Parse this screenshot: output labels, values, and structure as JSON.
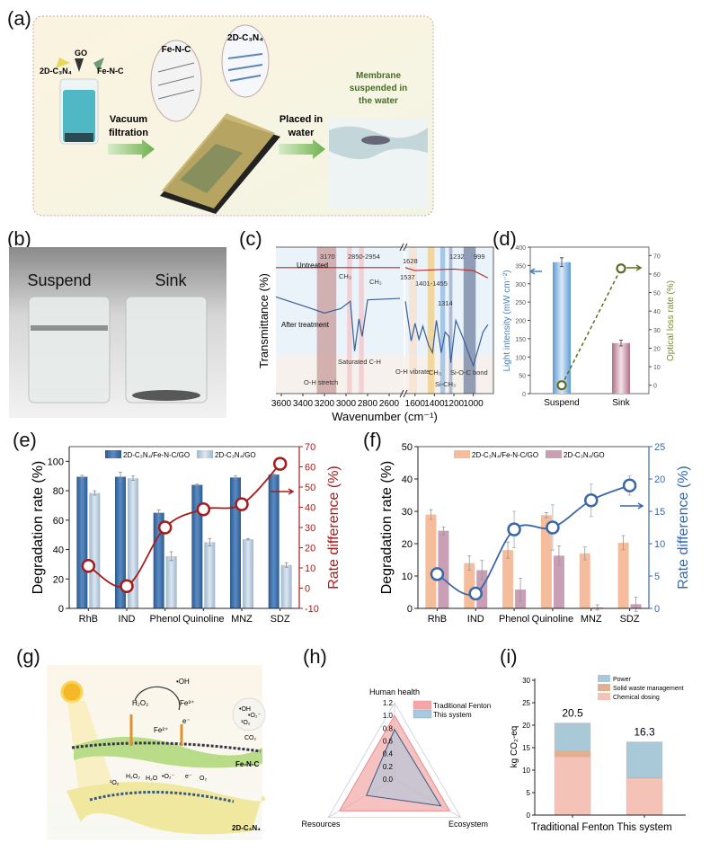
{
  "panel_labels": {
    "a": "(a)",
    "b": "(b)",
    "c": "(c)",
    "d": "(d)",
    "e": "(e)",
    "f": "(f)",
    "g": "(g)",
    "h": "(h)",
    "i": "(i)"
  },
  "panel_a": {
    "c3n4": "2D-C₃N₄",
    "go": "GO",
    "fenc": "Fe-N-C",
    "zoom_fenc": "Fe-N-C",
    "zoom_c3n4": "2D-C₃N₄",
    "vacuum_1": "Vacuum",
    "vacuum_2": "filtration",
    "placed_1": "Placed in",
    "placed_2": "water",
    "membrane_1": "Membrane",
    "membrane_2": "suspended in",
    "membrane_3": "the water",
    "colors": {
      "arrow": "#8cc36a",
      "membrane_text": "#4a6a2a",
      "beaker_liquid": "#4fb8c4"
    }
  },
  "panel_b": {
    "suspend": "Suspend",
    "sink": "Sink"
  },
  "panel_g": {
    "oh": "•OH",
    "h2o2": "H₂O₂",
    "fe3": "Fe³⁺",
    "fe2": "Fe²⁺",
    "e": "e⁻",
    "bubble_oh": "•OH",
    "bubble_o2": "•O₂⁻",
    "bubble_1o2": "¹O₂",
    "co2": "CO₂",
    "fenc": "Fe-N-C",
    "c3n4": "2D-C₃N₄",
    "low_1o2": "¹O₂",
    "low_h2o2": "H₂O₂",
    "low_h2o": "H₂O",
    "low_o2r": "•O₂⁻",
    "low_e": "e⁻",
    "low_o2": "O₂"
  },
  "chart_data": [
    {
      "panel": "c",
      "type": "line",
      "xlabel": "Wavenumber (cm⁻¹)",
      "ylabel": "Transmittance (%)",
      "x_axis_broken": true,
      "x_ticks_left": [
        3600,
        3400,
        3200,
        3000,
        2800,
        2600
      ],
      "x_ticks_right": [
        1600,
        1400,
        1200,
        1000
      ],
      "series": [
        {
          "name": "Untreated",
          "color": "#b03030",
          "points": [
            [
              3650,
              86
            ],
            [
              2500,
              86
            ],
            [
              1700,
              86
            ],
            [
              1600,
              84
            ],
            [
              1200,
              85
            ],
            [
              1000,
              84
            ],
            [
              850,
              79
            ]
          ]
        },
        {
          "name": "After treatment",
          "color": "#3a5f9a",
          "points": [
            [
              3650,
              66
            ],
            [
              3400,
              60
            ],
            [
              3200,
              55
            ],
            [
              3050,
              58
            ],
            [
              2960,
              63
            ],
            [
              2920,
              29
            ],
            [
              2880,
              51
            ],
            [
              2850,
              39
            ],
            [
              2800,
              64
            ],
            [
              2500,
              65
            ],
            [
              1700,
              63
            ],
            [
              1640,
              36
            ],
            [
              1600,
              48
            ],
            [
              1560,
              37
            ],
            [
              1520,
              46
            ],
            [
              1460,
              33
            ],
            [
              1420,
              28
            ],
            [
              1380,
              50
            ],
            [
              1330,
              28
            ],
            [
              1290,
              42
            ],
            [
              1250,
              39
            ],
            [
              1232,
              21
            ],
            [
              1180,
              50
            ],
            [
              1100,
              37
            ],
            [
              1000,
              19
            ],
            [
              900,
              42
            ],
            [
              850,
              47
            ]
          ]
        }
      ],
      "bands": [
        {
          "range": [
            3270,
            3090
          ],
          "color": "#c79a98"
        },
        {
          "range": [
            2990,
            2945
          ],
          "color": "#f2c4c8"
        },
        {
          "range": [
            2880,
            2835
          ],
          "color": "#f2c4c8"
        },
        {
          "range": [
            1660,
            1580
          ],
          "color": "#f8e0cc"
        },
        {
          "range": [
            1470,
            1400
          ],
          "color": "#f2cc80"
        },
        {
          "range": [
            1340,
            1290
          ],
          "color": "#90b8e0"
        },
        {
          "range": [
            1250,
            1215
          ],
          "color": "#98a8c4"
        },
        {
          "range": [
            1100,
            975
          ],
          "color": "#7080a0"
        }
      ],
      "annotations": {
        "p3170": "3170",
        "p2850": "2850-2954",
        "p1628": "1628",
        "p1232": "1232",
        "p999": "999",
        "ch3_a": "CH₃",
        "ch2": "CH₂",
        "p1537": "1537",
        "p1401": "1401-1455",
        "p1314": "1314",
        "oh_stretch": "O-H stretch",
        "sat_ch": "Saturated C-H",
        "oh_vibrate": "O-H vibrate",
        "ch3_b": "CH₃",
        "sich3": "Si-CH₃",
        "sioc": "Si-O-C bond"
      }
    },
    {
      "panel": "d",
      "type": "bar+line",
      "categories": [
        "Suspend",
        "Sink"
      ],
      "ylabel_left": "Light intensity (mW cm⁻²)",
      "ylabel_right": "Optical loss rate (%)",
      "ylim_left": [
        0,
        400
      ],
      "y_ticks_left": [
        0,
        50,
        100,
        150,
        200,
        250,
        300,
        350,
        400
      ],
      "ylim_right": [
        -5,
        75
      ],
      "y_ticks_right": [
        0,
        10,
        20,
        30,
        40,
        50,
        60,
        70
      ],
      "light_intensity": [
        359,
        138
      ],
      "light_error": [
        12,
        8
      ],
      "optical_loss": [
        0,
        63
      ],
      "colors": {
        "suspend": "#7fb2de",
        "sink": "#c48c9e",
        "loss": "#5a7020",
        "left_axis": "#4a80b8",
        "right_axis": "#7a8a30"
      }
    },
    {
      "panel": "e",
      "type": "bar+line",
      "categories": [
        "RhB",
        "IND",
        "Phenol",
        "Quinoline",
        "MNZ",
        "SDZ"
      ],
      "ylabel_left": "Degradation rate (%)",
      "ylabel_right": "Rate difference (%)",
      "ylim_left": [
        0,
        110
      ],
      "y_ticks_left": [
        0,
        20,
        40,
        60,
        80,
        100
      ],
      "ylim_right": [
        -10,
        70
      ],
      "y_ticks_right": [
        -10,
        0,
        10,
        20,
        30,
        40,
        50,
        60,
        70
      ],
      "series": [
        {
          "name": "2D-C₃N₄/Fe-N-C/GO",
          "values": [
            89.5,
            89.5,
            65,
            84,
            89,
            91
          ],
          "errors": [
            1,
            3,
            2,
            0.5,
            1,
            0.5
          ],
          "color": "#3e6fa6"
        },
        {
          "name": "2D-C₃N₄/GO",
          "values": [
            78.5,
            88.5,
            35.5,
            45,
            47,
            29.5
          ],
          "errors": [
            1.5,
            1.5,
            3,
            2.5,
            0.5,
            1.5
          ],
          "color": "#b9ccde"
        }
      ],
      "rate_difference": [
        11,
        1,
        30,
        39,
        41.5,
        61.5
      ],
      "line_color": "#a51c1c"
    },
    {
      "panel": "f",
      "type": "bar+line",
      "categories": [
        "RhB",
        "IND",
        "Phenol",
        "Quinoline",
        "MNZ",
        "SDZ"
      ],
      "ylabel_left": "Degradation rate (%)",
      "ylabel_right": "Rate difference (%)",
      "ylim_left": [
        0,
        50
      ],
      "y_ticks_left": [
        0,
        10,
        20,
        30,
        40,
        50
      ],
      "ylim_right": [
        0,
        25
      ],
      "y_ticks_right": [
        0,
        5,
        10,
        15,
        20,
        25
      ],
      "series": [
        {
          "name": "2D-C₃N₄/Fe-N-C/GO",
          "values": [
            29,
            14,
            18,
            28.8,
            17,
            20.3
          ],
          "errors": [
            1.5,
            2.2,
            2.5,
            0.8,
            2,
            2.2
          ],
          "color": "#f5bd9c"
        },
        {
          "name": "2D-C₃N₄/GO",
          "values": [
            24,
            11.8,
            5.8,
            16.3,
            0.3,
            1.3
          ],
          "errors": [
            1.2,
            3,
            3.5,
            3,
            0.8,
            2.2
          ],
          "color": "#c99fb5"
        }
      ],
      "rate_difference": [
        5.3,
        2.3,
        12.2,
        12.5,
        16.7,
        19
      ],
      "rate_difference_errors": [
        0,
        0,
        2.8,
        3.5,
        2.5,
        1.5
      ],
      "line_color": "#3a68a6"
    },
    {
      "panel": "h",
      "type": "radar",
      "axes": [
        "Human health",
        "Resources",
        "Ecosystem"
      ],
      "r_ticks": [
        "0.0",
        "0.2",
        "0.4",
        "0.6",
        "0.8",
        "1.0",
        "1.2"
      ],
      "rlim": [
        0,
        1.2
      ],
      "series": [
        {
          "name": "Traditional Fenton",
          "values": [
            1.0,
            1.0,
            1.0
          ],
          "color": "#f2a6a6"
        },
        {
          "name": "This system",
          "values": [
            0.78,
            0.51,
            0.84
          ],
          "color": "#a8c8e0"
        }
      ]
    },
    {
      "panel": "i",
      "type": "bar",
      "stacked": true,
      "categories": [
        "Traditional Fenton",
        "This system"
      ],
      "ylabel": "kg CO₂-eq",
      "ylim": [
        0,
        30
      ],
      "y_ticks": [
        0,
        5,
        10,
        15,
        20,
        25,
        30
      ],
      "series": [
        {
          "name": "Chemical dosing",
          "values": [
            13.0,
            8.2
          ],
          "color": "#f4c2b6"
        },
        {
          "name": "Solid waste management",
          "values": [
            1.2,
            0.1
          ],
          "color": "#e2b08c"
        },
        {
          "name": "Power",
          "values": [
            6.3,
            8.0
          ],
          "color": "#a9c9d9"
        }
      ],
      "totals": [
        "20.5",
        "16.3"
      ],
      "legend_order": [
        "Power",
        "Solid waste management",
        "Chemical dosing"
      ]
    }
  ]
}
